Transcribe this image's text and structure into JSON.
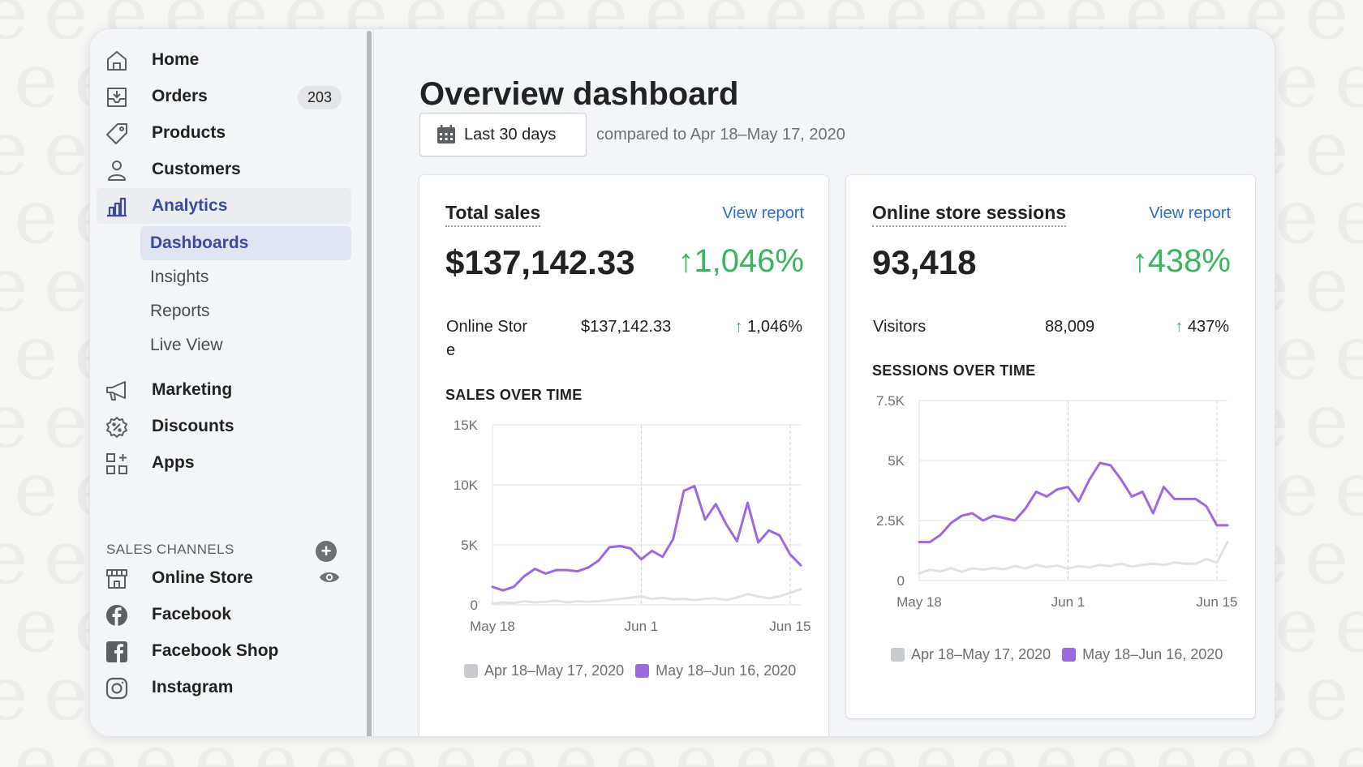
{
  "sidebar": {
    "nav": [
      {
        "label": "Home",
        "icon": "home-icon"
      },
      {
        "label": "Orders",
        "icon": "orders-icon",
        "badge": "203"
      },
      {
        "label": "Products",
        "icon": "tag-icon"
      },
      {
        "label": "Customers",
        "icon": "person-icon"
      },
      {
        "label": "Analytics",
        "icon": "bar-chart-icon"
      }
    ],
    "analytics_sub": [
      {
        "label": "Dashboards"
      },
      {
        "label": "Insights"
      },
      {
        "label": "Reports"
      },
      {
        "label": "Live View"
      }
    ],
    "nav2": [
      {
        "label": "Marketing",
        "icon": "megaphone-icon"
      },
      {
        "label": "Discounts",
        "icon": "discount-icon"
      },
      {
        "label": "Apps",
        "icon": "apps-icon"
      }
    ],
    "sales_channels_label": "SALES CHANNELS",
    "channels": [
      {
        "label": "Online Store",
        "icon": "store-icon"
      },
      {
        "label": "Facebook",
        "icon": "facebook-icon"
      },
      {
        "label": "Facebook Shop",
        "icon": "facebook-shop-icon"
      },
      {
        "label": "Instagram",
        "icon": "instagram-icon"
      }
    ]
  },
  "main": {
    "title": "Overview dashboard",
    "date_button_label": "Last 30 days",
    "compare_text": "compared to Apr 18–May 17, 2020"
  },
  "sales_card": {
    "title": "Total sales",
    "view_report": "View report",
    "value": "$137,142.33",
    "change": "1,046%",
    "row_label_1": "Online Stor",
    "row_label_2": "e",
    "row_value": "$137,142.33",
    "row_change": "1,046%",
    "chart_title": "SALES OVER TIME"
  },
  "sessions_card": {
    "title": "Online store sessions",
    "view_report": "View report",
    "value": "93,418",
    "change": "438%",
    "row_label": "Visitors",
    "row_value": "88,009",
    "row_change": "437%",
    "chart_title": "SESSIONS OVER TIME"
  },
  "colors": {
    "current": "#9c6ade",
    "previous": "#dfe1e3",
    "positive": "#3cb35f",
    "link": "#2c6ecb",
    "active_nav": "#3b4a9e"
  },
  "chart_data": [
    {
      "type": "line",
      "title": "SALES OVER TIME",
      "x": [
        "May 18",
        "May 19",
        "May 20",
        "May 21",
        "May 22",
        "May 23",
        "May 24",
        "May 25",
        "May 26",
        "May 27",
        "May 28",
        "May 29",
        "May 30",
        "May 31",
        "Jun 1",
        "Jun 2",
        "Jun 3",
        "Jun 4",
        "Jun 5",
        "Jun 6",
        "Jun 7",
        "Jun 8",
        "Jun 9",
        "Jun 10",
        "Jun 11",
        "Jun 12",
        "Jun 13",
        "Jun 14",
        "Jun 15",
        "Jun 16"
      ],
      "x_ticks": [
        "May 18",
        "Jun 1",
        "Jun 15"
      ],
      "y_ticks": [
        "0",
        "5K",
        "10K",
        "15K"
      ],
      "ylim": [
        0,
        15000
      ],
      "series": [
        {
          "name": "Apr 18–May 17, 2020",
          "values": [
            100,
            200,
            150,
            300,
            200,
            250,
            350,
            200,
            300,
            250,
            300,
            400,
            500,
            600,
            700,
            500,
            600,
            450,
            500,
            400,
            500,
            550,
            400,
            600,
            900,
            700,
            550,
            700,
            1000,
            1300
          ]
        },
        {
          "name": "May 18–Jun 16, 2020",
          "values": [
            1500,
            1200,
            1500,
            2400,
            3000,
            2600,
            2900,
            2900,
            2800,
            3100,
            3700,
            4800,
            4900,
            4700,
            3800,
            4500,
            4000,
            5500,
            9500,
            9900,
            7100,
            8400,
            6700,
            5300,
            8500,
            5200,
            6200,
            5800,
            4200,
            3300
          ]
        }
      ],
      "legend": [
        "Apr 18–May 17, 2020",
        "May 18–Jun 16, 2020"
      ],
      "grid": true
    },
    {
      "type": "line",
      "title": "SESSIONS OVER TIME",
      "x": [
        "May 18",
        "May 19",
        "May 20",
        "May 21",
        "May 22",
        "May 23",
        "May 24",
        "May 25",
        "May 26",
        "May 27",
        "May 28",
        "May 29",
        "May 30",
        "May 31",
        "Jun 1",
        "Jun 2",
        "Jun 3",
        "Jun 4",
        "Jun 5",
        "Jun 6",
        "Jun 7",
        "Jun 8",
        "Jun 9",
        "Jun 10",
        "Jun 11",
        "Jun 12",
        "Jun 13",
        "Jun 14",
        "Jun 15",
        "Jun 16"
      ],
      "x_ticks": [
        "May 18",
        "Jun 1",
        "Jun 15"
      ],
      "y_ticks": [
        "0",
        "2.5K",
        "5K",
        "7.5K"
      ],
      "ylim": [
        0,
        7500
      ],
      "series": [
        {
          "name": "Apr 18–May 17, 2020",
          "values": [
            300,
            450,
            380,
            520,
            360,
            510,
            450,
            520,
            470,
            600,
            500,
            650,
            560,
            620,
            500,
            600,
            550,
            650,
            600,
            700,
            580,
            650,
            700,
            650,
            750,
            700,
            700,
            900,
            750,
            1600
          ]
        },
        {
          "name": "May 18–Jun 16, 2020",
          "values": [
            1600,
            1600,
            1900,
            2400,
            2700,
            2800,
            2500,
            2700,
            2600,
            2500,
            3000,
            3700,
            3500,
            3800,
            3900,
            3300,
            4200,
            4900,
            4800,
            4200,
            3500,
            3700,
            2800,
            3900,
            3400,
            3400,
            3400,
            3100,
            2300,
            2300
          ]
        }
      ],
      "legend": [
        "Apr 18–May 17, 2020",
        "May 18–Jun 16, 2020"
      ],
      "grid": true
    }
  ]
}
